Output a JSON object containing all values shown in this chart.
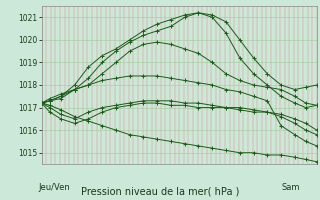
{
  "title": "Pression niveau de la mer( hPa )",
  "xlabel_left": "Jeu/Ven",
  "xlabel_right": "Sam",
  "ylim": [
    1014.5,
    1021.5
  ],
  "yticks": [
    1015,
    1016,
    1017,
    1018,
    1019,
    1020,
    1021
  ],
  "bg_color": "#cce8d8",
  "line_color": "#1a5c1a",
  "series": [
    {
      "x": [
        0.0,
        0.03,
        0.07,
        0.12,
        0.17,
        0.22,
        0.27,
        0.32,
        0.37,
        0.42,
        0.47,
        0.52,
        0.57,
        0.62,
        0.67,
        0.72,
        0.77,
        0.82,
        0.87,
        0.92,
        0.96,
        1.0
      ],
      "y": [
        1017.2,
        1017.3,
        1017.5,
        1018.0,
        1018.8,
        1019.3,
        1019.6,
        1020.0,
        1020.4,
        1020.7,
        1020.9,
        1021.1,
        1021.2,
        1021.1,
        1020.8,
        1020.0,
        1019.2,
        1018.5,
        1018.0,
        1017.8,
        1017.9,
        1018.0
      ]
    },
    {
      "x": [
        0.0,
        0.03,
        0.07,
        0.12,
        0.17,
        0.22,
        0.27,
        0.32,
        0.37,
        0.42,
        0.47,
        0.52,
        0.57,
        0.62,
        0.67,
        0.72,
        0.77,
        0.82,
        0.87,
        0.92,
        0.96,
        1.0
      ],
      "y": [
        1017.2,
        1017.3,
        1017.4,
        1017.8,
        1018.3,
        1019.0,
        1019.5,
        1019.9,
        1020.2,
        1020.4,
        1020.6,
        1021.0,
        1021.2,
        1021.0,
        1020.3,
        1019.2,
        1018.5,
        1018.0,
        1017.5,
        1017.2,
        1017.0,
        1017.1
      ]
    },
    {
      "x": [
        0.0,
        0.03,
        0.07,
        0.12,
        0.17,
        0.22,
        0.27,
        0.32,
        0.37,
        0.42,
        0.47,
        0.52,
        0.57,
        0.62,
        0.67,
        0.72,
        0.77,
        0.82,
        0.87,
        0.92,
        0.96,
        1.0
      ],
      "y": [
        1017.2,
        1017.4,
        1017.6,
        1017.8,
        1018.0,
        1018.5,
        1019.0,
        1019.5,
        1019.8,
        1019.9,
        1019.8,
        1019.6,
        1019.4,
        1019.0,
        1018.5,
        1018.2,
        1018.0,
        1017.9,
        1017.8,
        1017.5,
        1017.2,
        1017.1
      ]
    },
    {
      "x": [
        0.0,
        0.03,
        0.07,
        0.12,
        0.17,
        0.22,
        0.27,
        0.32,
        0.37,
        0.42,
        0.47,
        0.52,
        0.57,
        0.62,
        0.67,
        0.72,
        0.77,
        0.82,
        0.87,
        0.92,
        0.96,
        1.0
      ],
      "y": [
        1017.2,
        1016.8,
        1016.5,
        1016.3,
        1016.5,
        1016.8,
        1017.0,
        1017.1,
        1017.2,
        1017.2,
        1017.1,
        1017.1,
        1017.0,
        1017.0,
        1017.0,
        1016.9,
        1016.8,
        1016.8,
        1016.7,
        1016.5,
        1016.3,
        1016.0
      ]
    },
    {
      "x": [
        0.0,
        0.03,
        0.07,
        0.12,
        0.17,
        0.22,
        0.27,
        0.32,
        0.37,
        0.42,
        0.47,
        0.52,
        0.57,
        0.62,
        0.67,
        0.72,
        0.77,
        0.82,
        0.87,
        0.92,
        0.96,
        1.0
      ],
      "y": [
        1017.2,
        1017.0,
        1016.7,
        1016.5,
        1016.8,
        1017.0,
        1017.1,
        1017.2,
        1017.3,
        1017.3,
        1017.3,
        1017.2,
        1017.2,
        1017.1,
        1017.0,
        1017.0,
        1016.9,
        1016.8,
        1016.6,
        1016.3,
        1016.0,
        1015.8
      ]
    },
    {
      "x": [
        0.0,
        0.03,
        0.07,
        0.12,
        0.17,
        0.22,
        0.27,
        0.32,
        0.37,
        0.42,
        0.47,
        0.52,
        0.57,
        0.62,
        0.67,
        0.72,
        0.77,
        0.82,
        0.87,
        0.92,
        0.96,
        1.0
      ],
      "y": [
        1017.2,
        1017.3,
        1017.5,
        1017.8,
        1018.0,
        1018.2,
        1018.3,
        1018.4,
        1018.4,
        1018.4,
        1018.3,
        1018.2,
        1018.1,
        1018.0,
        1017.8,
        1017.7,
        1017.5,
        1017.3,
        1016.2,
        1015.8,
        1015.5,
        1015.3
      ]
    },
    {
      "x": [
        0.0,
        0.03,
        0.07,
        0.12,
        0.17,
        0.22,
        0.27,
        0.32,
        0.37,
        0.42,
        0.47,
        0.52,
        0.57,
        0.62,
        0.67,
        0.72,
        0.77,
        0.82,
        0.87,
        0.92,
        0.96,
        1.0
      ],
      "y": [
        1017.2,
        1017.1,
        1016.9,
        1016.6,
        1016.4,
        1016.2,
        1016.0,
        1015.8,
        1015.7,
        1015.6,
        1015.5,
        1015.4,
        1015.3,
        1015.2,
        1015.1,
        1015.0,
        1015.0,
        1014.9,
        1014.9,
        1014.8,
        1014.7,
        1014.6
      ]
    }
  ]
}
